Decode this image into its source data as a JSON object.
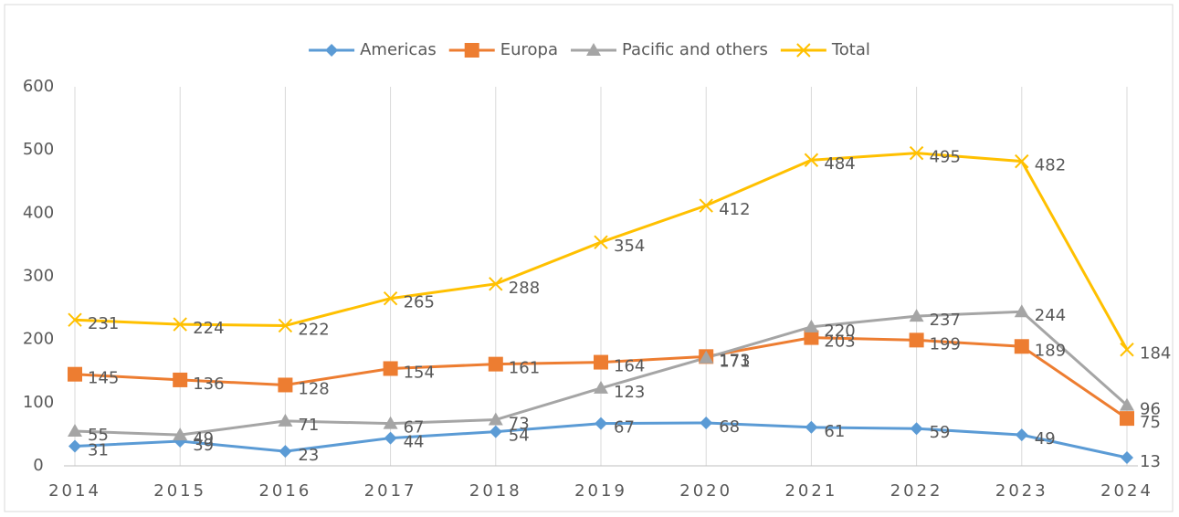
{
  "chart_data": {
    "type": "line",
    "categories": [
      "2014",
      "2015",
      "2016",
      "2017",
      "2018",
      "2019",
      "2020",
      "2021",
      "2022",
      "2023",
      "2024"
    ],
    "series": [
      {
        "name": "Americas",
        "color": "#5b9bd5",
        "marker": "diamond",
        "values": [
          31,
          39,
          23,
          44,
          54,
          67,
          68,
          61,
          59,
          49,
          13
        ]
      },
      {
        "name": "Europa",
        "color": "#ed7d31",
        "marker": "square",
        "values": [
          145,
          136,
          128,
          154,
          161,
          164,
          173,
          203,
          199,
          189,
          75
        ]
      },
      {
        "name": "Pacific and others",
        "color": "#a5a5a5",
        "marker": "triangle",
        "values": [
          55,
          49,
          71,
          67,
          73,
          123,
          171,
          220,
          237,
          244,
          96
        ]
      },
      {
        "name": "Total",
        "color": "#ffc000",
        "marker": "x",
        "values": [
          231,
          224,
          222,
          265,
          288,
          354,
          412,
          484,
          495,
          482,
          184
        ]
      }
    ],
    "ylim": [
      0,
      600
    ],
    "yticks": [
      0,
      100,
      200,
      300,
      400,
      500,
      600
    ],
    "grid": "vertical",
    "legend": "top",
    "data_labels": true
  }
}
